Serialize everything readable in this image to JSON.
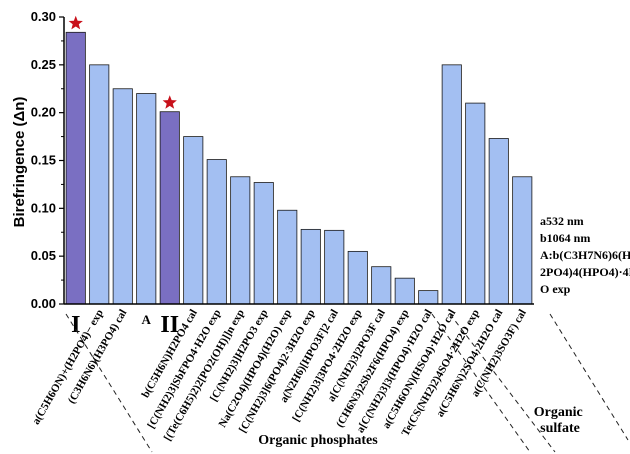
{
  "chart_data": {
    "type": "bar",
    "ylabel": "Birefringence (Δn)",
    "ylim": [
      0,
      0.3
    ],
    "yticks": [
      "0.00",
      "0.05",
      "0.10",
      "0.15",
      "0.20",
      "0.25",
      "0.30"
    ],
    "categories": [
      "I",
      "a(C5H6ON)+(H2PO4)− exp",
      "(C3H6N6)(H3PO4) cal",
      "A",
      "II",
      "b(C5H6N)H2PO4 cal",
      "[C(NH2)3]SbFPO4·H2O exp",
      "[(Te(C6H5)2)2[PO2(OH)]]n exp",
      "[C(NH2)3]H2PO3 exp",
      "Na(C2O4)(HPO4)(H2O) exp",
      "[C(NH2)3]6(PO4)2·3H2O exp",
      "a(N2H6)[HPO3F]2 cal",
      "[C(NH2)3]3PO4·2H2O exp",
      "a[C(NH2)3]2PO3F cal",
      "(CH6N3)2Sb2F6(HPO4) exp",
      "a[C(NH2)3]3(HPO4)·H2O cal",
      "a(C5H6ON)(HSO4)·H2O cal",
      "Te(CS(NH2)2)4SO4·2H2O exp",
      "a(C5H6N)2SO4·2H2O cal",
      "a(C(NH2)3SO3F) cal"
    ],
    "values": [
      0.284,
      0.25,
      0.225,
      0.22,
      0.201,
      0.175,
      0.151,
      0.133,
      0.127,
      0.098,
      0.078,
      0.077,
      0.055,
      0.039,
      0.027,
      0.014,
      0.25,
      0.21,
      0.173,
      0.133
    ],
    "highlighted": [
      0,
      4
    ],
    "colors": {
      "bar": "#a3bff2",
      "highlight": "#7a6fc2",
      "star": "#c8101a",
      "edge": "#1a1a1a"
    },
    "markers": "star-icon",
    "groups": [
      "Organic phosphates",
      "Organic sulfate"
    ],
    "notes": [
      "a532 nm",
      "b1064 nm",
      "A:b(C3H7N6)6(H2PO4)4(HPO4)·4H2O exp"
    ]
  }
}
